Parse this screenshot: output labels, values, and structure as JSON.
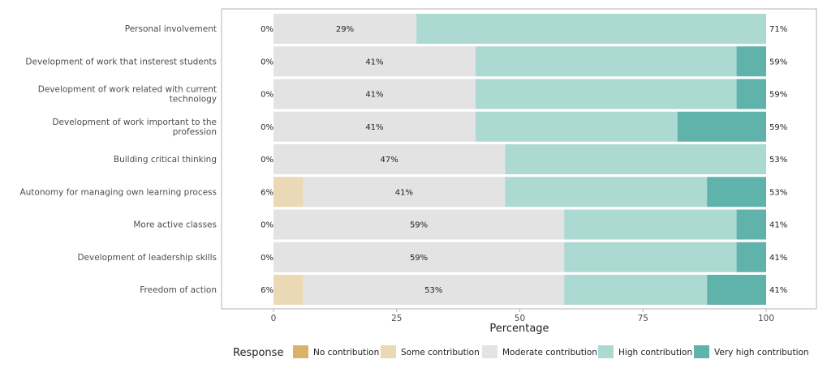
{
  "chart_data": {
    "type": "bar",
    "orientation": "horizontal",
    "stacked": true,
    "xlabel": "Percentage",
    "ylabel": "",
    "xlim": [
      0,
      100
    ],
    "x_ticks": [
      0,
      25,
      50,
      75,
      100
    ],
    "grid": false,
    "legend": {
      "title": "Response",
      "position": "bottom"
    },
    "categories": [
      "Personal involvement",
      "Development of work that insterest students",
      "Development of work related with current technology",
      "Development of work important to the profession",
      "Building critical thinking",
      "Autonomy for managing own learning process",
      "More active classes",
      "Development of leadership skills",
      "Freedom of action"
    ],
    "series": [
      {
        "name": "No contribution",
        "color": "#d9b36a",
        "values": [
          0,
          0,
          0,
          0,
          0,
          0,
          0,
          0,
          0
        ]
      },
      {
        "name": "Some contribution",
        "color": "#ead9b4",
        "values": [
          0,
          0,
          0,
          0,
          0,
          6,
          0,
          0,
          6
        ]
      },
      {
        "name": "Moderate contribution",
        "color": "#e3e3e3",
        "values": [
          29,
          41,
          41,
          41,
          47,
          41,
          59,
          59,
          53
        ]
      },
      {
        "name": "High contribution",
        "color": "#add9d3",
        "values": [
          71,
          53,
          53,
          41,
          53,
          41,
          35,
          35,
          29
        ]
      },
      {
        "name": "Very high contribution",
        "color": "#5fb3aa",
        "values": [
          0,
          6,
          6,
          18,
          0,
          12,
          6,
          6,
          12
        ]
      }
    ],
    "left_labels": [
      "0%",
      "0%",
      "0%",
      "0%",
      "0%",
      "6%",
      "0%",
      "0%",
      "6%"
    ],
    "center_labels": [
      "29%",
      "41%",
      "41%",
      "41%",
      "47%",
      "41%",
      "59%",
      "59%",
      "53%"
    ],
    "right_labels": [
      "71%",
      "59%",
      "59%",
      "59%",
      "53%",
      "53%",
      "41%",
      "41%",
      "41%"
    ]
  }
}
